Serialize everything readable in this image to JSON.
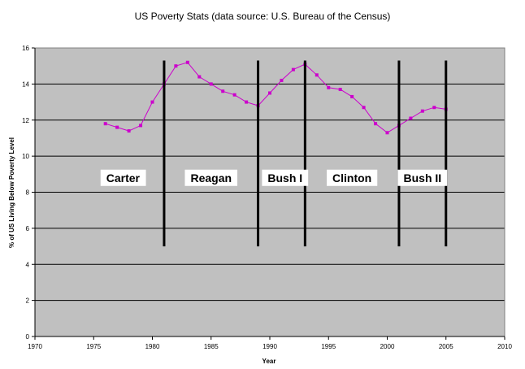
{
  "chart_data": {
    "type": "line",
    "title": "US Poverty Stats (data source: U.S. Bureau of the Census)",
    "xlabel": "Year",
    "ylabel": "% of US Living Below Poverty Level",
    "xlim": [
      1970,
      2010
    ],
    "ylim": [
      0,
      16
    ],
    "x_ticks": [
      1970,
      1975,
      1980,
      1985,
      1990,
      1995,
      2000,
      2005,
      2010
    ],
    "y_ticks": [
      0,
      2,
      4,
      6,
      8,
      10,
      12,
      14,
      16
    ],
    "grid": "horizontal",
    "legend": "none",
    "series": [
      {
        "color": "#cc00cc",
        "x": [
          1976,
          1977,
          1978,
          1979,
          1980,
          1981,
          1982,
          1983,
          1984,
          1985,
          1986,
          1987,
          1988,
          1989,
          1990,
          1991,
          1992,
          1993,
          1994,
          1995,
          1996,
          1997,
          1998,
          1999,
          2000,
          2001,
          2002,
          2003,
          2004,
          2005
        ],
        "y": [
          11.8,
          11.6,
          11.4,
          11.7,
          13.0,
          14.0,
          15.0,
          15.2,
          14.4,
          14.0,
          13.6,
          13.4,
          13.0,
          12.8,
          13.5,
          14.2,
          14.8,
          15.1,
          14.5,
          13.8,
          13.7,
          13.3,
          12.7,
          11.8,
          11.3,
          11.7,
          12.1,
          12.5,
          12.7,
          12.6
        ]
      }
    ],
    "annotations": {
      "divider_years": [
        1981,
        1989,
        1993,
        2001,
        2005
      ],
      "divider_range": [
        5,
        15.3
      ],
      "eras": [
        {
          "label": "Carter",
          "x": 1977.5,
          "y": 8.8
        },
        {
          "label": "Reagan",
          "x": 1985,
          "y": 8.8
        },
        {
          "label": "Bush I",
          "x": 1991.3,
          "y": 8.8
        },
        {
          "label": "Clinton",
          "x": 1997,
          "y": 8.8
        },
        {
          "label": "Bush II",
          "x": 2003,
          "y": 8.8
        }
      ]
    }
  },
  "colors": {
    "plot_background": "#c0c0c0",
    "line": "#cc00cc",
    "divider": "#000000",
    "grid": "#000000"
  }
}
